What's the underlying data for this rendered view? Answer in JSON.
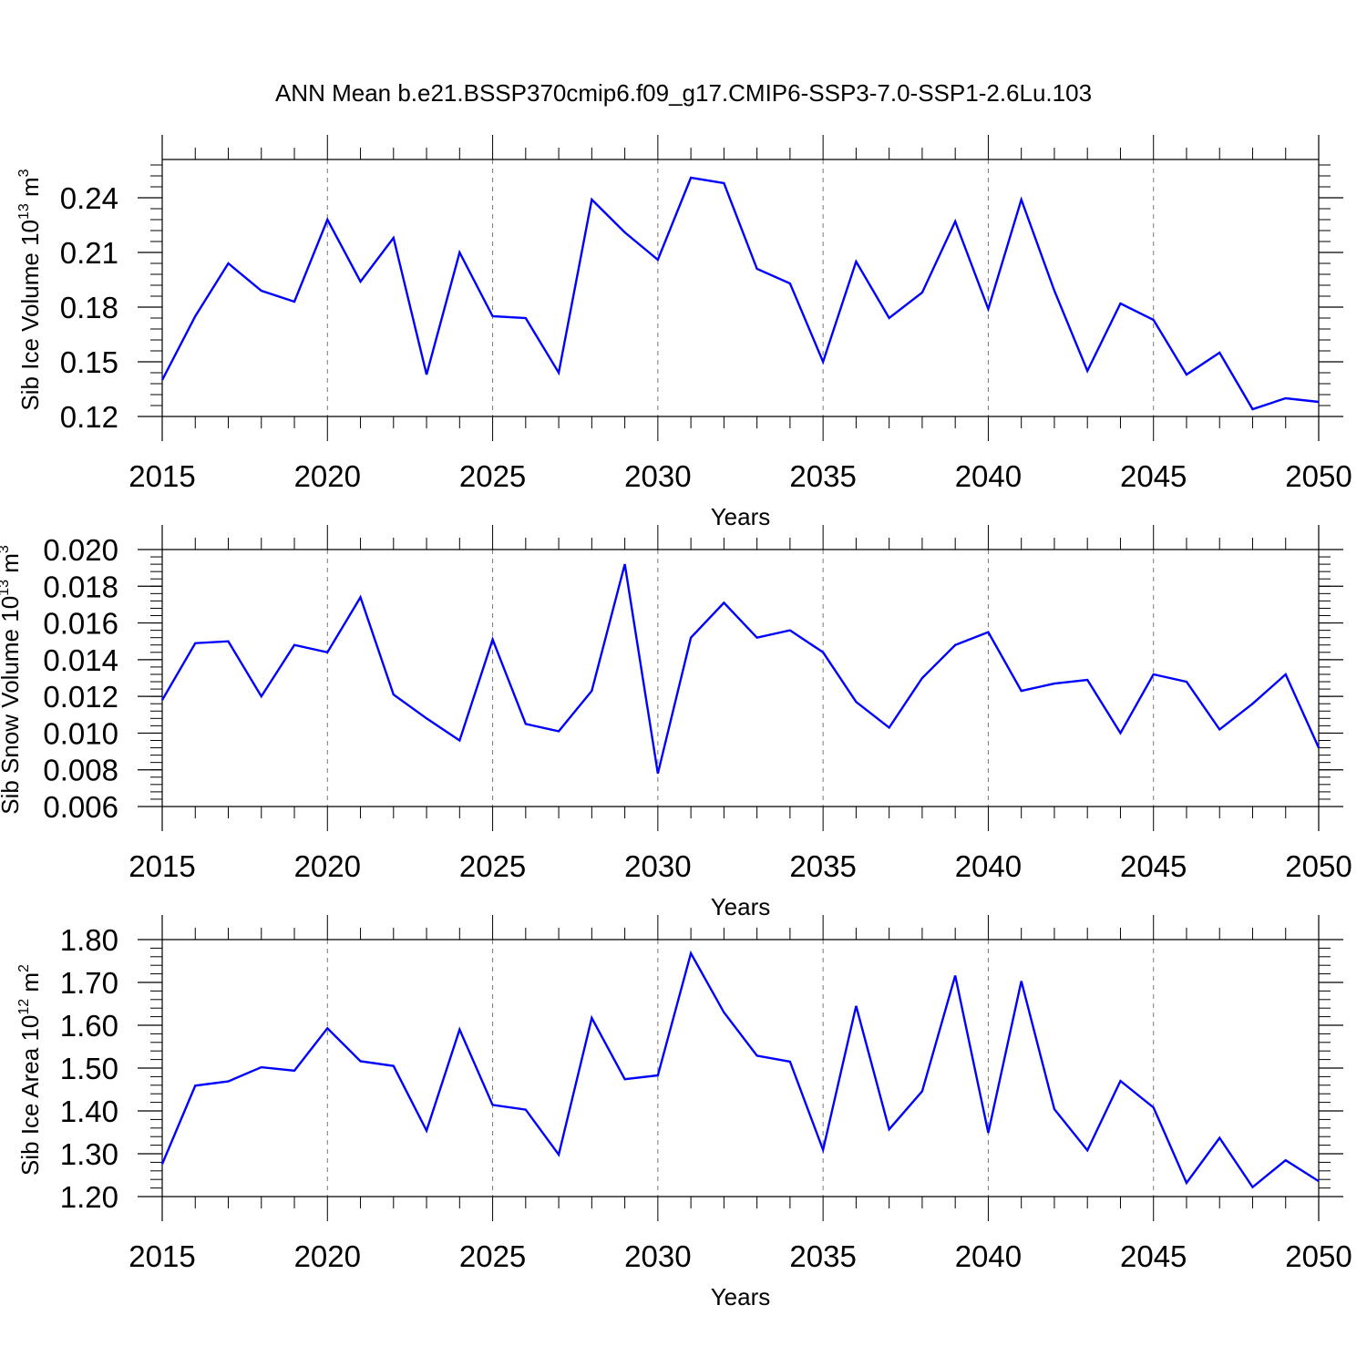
{
  "title": "ANN Mean b.e21.BSSP370cmip6.f09_g17.CMIP6-SSP3-7.0-SSP1-2.6Lu.103",
  "colors": {
    "line": "#0000ff",
    "axis": "#000000",
    "grid": "#777777",
    "background": "#ffffff"
  },
  "chart_data": [
    {
      "type": "line",
      "ylabel": {
        "text": "Sib Ice Volume 10",
        "sup": "13",
        "unit": " m",
        "unit_sup": "3"
      },
      "xlabel": "Years",
      "xlim": [
        2015,
        2050
      ],
      "ylim": [
        0.12,
        0.261
      ],
      "yticks": [
        0.12,
        0.15,
        0.18,
        0.21,
        0.24
      ],
      "ytick_labels": [
        "0.12",
        "0.15",
        "0.18",
        "0.21",
        "0.24"
      ],
      "yminor_step": 0.006,
      "xticks": [
        2015,
        2020,
        2025,
        2030,
        2035,
        2040,
        2045,
        2050
      ],
      "xtick_labels": [
        "2015",
        "2020",
        "2025",
        "2030",
        "2035",
        "2040",
        "2045",
        "2050"
      ],
      "grid": "vertical dashed at major x ticks",
      "series": [
        {
          "name": "Sib Ice Volume",
          "x": [
            2015,
            2016,
            2017,
            2018,
            2019,
            2020,
            2021,
            2022,
            2023,
            2024,
            2025,
            2026,
            2027,
            2028,
            2029,
            2030,
            2031,
            2032,
            2033,
            2034,
            2035,
            2036,
            2037,
            2038,
            2039,
            2040,
            2041,
            2042,
            2043,
            2044,
            2045,
            2046,
            2047,
            2048,
            2049,
            2050
          ],
          "values": [
            0.14,
            0.175,
            0.204,
            0.189,
            0.183,
            0.228,
            0.194,
            0.218,
            0.143,
            0.21,
            0.175,
            0.174,
            0.144,
            0.239,
            0.221,
            0.206,
            0.251,
            0.248,
            0.201,
            0.193,
            0.15,
            0.205,
            0.174,
            0.188,
            0.227,
            0.179,
            0.239,
            0.189,
            0.145,
            0.182,
            0.173,
            0.143,
            0.155,
            0.124,
            0.13,
            0.128
          ]
        }
      ]
    },
    {
      "type": "line",
      "ylabel": {
        "text": "Sib Snow Volume 10",
        "sup": "13",
        "unit": " m",
        "unit_sup": "3"
      },
      "xlabel": "Years",
      "xlim": [
        2015,
        2050
      ],
      "ylim": [
        0.006,
        0.02
      ],
      "yticks": [
        0.006,
        0.008,
        0.01,
        0.012,
        0.014,
        0.016,
        0.018,
        0.02
      ],
      "ytick_labels": [
        "0.006",
        "0.008",
        "0.010",
        "0.012",
        "0.014",
        "0.016",
        "0.018",
        "0.020"
      ],
      "yminor_step": 0.0004,
      "xticks": [
        2015,
        2020,
        2025,
        2030,
        2035,
        2040,
        2045,
        2050
      ],
      "xtick_labels": [
        "2015",
        "2020",
        "2025",
        "2030",
        "2035",
        "2040",
        "2045",
        "2050"
      ],
      "grid": "vertical dashed at major x ticks",
      "series": [
        {
          "name": "Sib Snow Volume",
          "x": [
            2015,
            2016,
            2017,
            2018,
            2019,
            2020,
            2021,
            2022,
            2023,
            2024,
            2025,
            2026,
            2027,
            2028,
            2029,
            2030,
            2031,
            2032,
            2033,
            2034,
            2035,
            2036,
            2037,
            2038,
            2039,
            2040,
            2041,
            2042,
            2043,
            2044,
            2045,
            2046,
            2047,
            2048,
            2049,
            2050
          ],
          "values": [
            0.0118,
            0.0149,
            0.015,
            0.012,
            0.0148,
            0.0144,
            0.0174,
            0.0121,
            0.0108,
            0.0096,
            0.0151,
            0.0105,
            0.0101,
            0.0123,
            0.0192,
            0.0078,
            0.0152,
            0.0171,
            0.0152,
            0.0156,
            0.0144,
            0.0117,
            0.0103,
            0.013,
            0.0148,
            0.0155,
            0.0123,
            0.0127,
            0.0129,
            0.01,
            0.0132,
            0.0128,
            0.0102,
            0.0116,
            0.0132,
            0.0092
          ]
        }
      ]
    },
    {
      "type": "line",
      "ylabel": {
        "text": "Sib Ice Area 10",
        "sup": "12",
        "unit": " m",
        "unit_sup": "2"
      },
      "xlabel": "Years",
      "xlim": [
        2015,
        2050
      ],
      "ylim": [
        1.2,
        1.8
      ],
      "yticks": [
        1.2,
        1.3,
        1.4,
        1.5,
        1.6,
        1.7,
        1.8
      ],
      "ytick_labels": [
        "1.20",
        "1.30",
        "1.40",
        "1.50",
        "1.60",
        "1.70",
        "1.80"
      ],
      "yminor_step": 0.02,
      "xticks": [
        2015,
        2020,
        2025,
        2030,
        2035,
        2040,
        2045,
        2050
      ],
      "xtick_labels": [
        "2015",
        "2020",
        "2025",
        "2030",
        "2035",
        "2040",
        "2045",
        "2050"
      ],
      "grid": "vertical dashed at major x ticks",
      "series": [
        {
          "name": "Sib Ice Area",
          "x": [
            2015,
            2016,
            2017,
            2018,
            2019,
            2020,
            2021,
            2022,
            2023,
            2024,
            2025,
            2026,
            2027,
            2028,
            2029,
            2030,
            2031,
            2032,
            2033,
            2034,
            2035,
            2036,
            2037,
            2038,
            2039,
            2040,
            2041,
            2042,
            2043,
            2044,
            2045,
            2046,
            2047,
            2048,
            2049,
            2050
          ],
          "values": [
            1.276,
            1.459,
            1.469,
            1.502,
            1.494,
            1.593,
            1.516,
            1.505,
            1.354,
            1.59,
            1.414,
            1.403,
            1.298,
            1.617,
            1.474,
            1.483,
            1.768,
            1.63,
            1.529,
            1.515,
            1.309,
            1.645,
            1.357,
            1.446,
            1.716,
            1.349,
            1.703,
            1.404,
            1.308,
            1.47,
            1.408,
            1.232,
            1.337,
            1.222,
            1.285,
            1.236
          ]
        }
      ]
    }
  ]
}
